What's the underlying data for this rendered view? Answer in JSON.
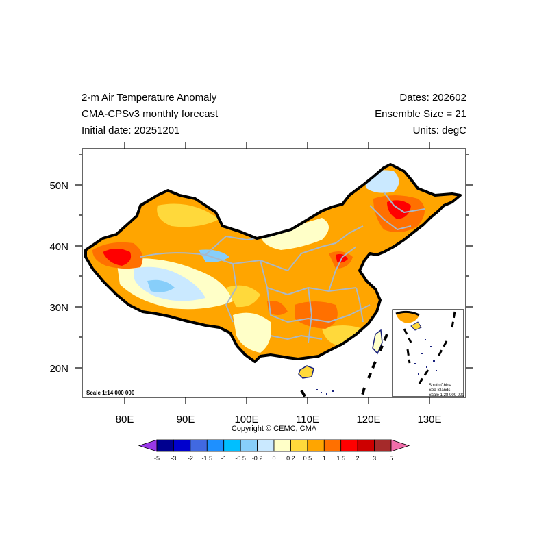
{
  "header": {
    "title": "2-m Air Temperature Anomaly",
    "model": "CMA-CPSv3 monthly forecast",
    "initial_date": "Initial date: 20251201",
    "dates": "Dates: 202602",
    "ensemble": "Ensemble Size = 21",
    "units": "Units: degC"
  },
  "axes": {
    "lon_labels": [
      "80E",
      "90E",
      "100E",
      "110E",
      "120E",
      "130E"
    ],
    "lat_labels": [
      "50N",
      "40N",
      "30N",
      "20N"
    ]
  },
  "map": {
    "scale_main": "Scale 1:14 000 000",
    "inset_title_1": "South China",
    "inset_title_2": "Sea Islands",
    "inset_scale": "Scale 1:28 000 000"
  },
  "copyright": "Copyright © CEMC, CMA",
  "colorbar": {
    "labels": [
      "-5",
      "-3",
      "-2",
      "-1.5",
      "-1",
      "-0.5",
      "-0.2",
      "0",
      "0.2",
      "0.5",
      "1",
      "1.5",
      "2",
      "3",
      "5"
    ],
    "colors": [
      "#9a38e8",
      "#00008f",
      "#0000cd",
      "#4169e1",
      "#1e90ff",
      "#00bfff",
      "#87cefa",
      "#cae9ff",
      "#ffffc8",
      "#ffd93b",
      "#ffa500",
      "#ff7000",
      "#ff0000",
      "#cd0000",
      "#a52a2a",
      "#f06eaa"
    ]
  },
  "palette": {
    "orange": "#ffa500",
    "dark_orange": "#ff7000",
    "gold": "#ffd93b",
    "pale_yellow": "#ffffc8",
    "pale_blue": "#cae9ff",
    "light_blue": "#87cefa",
    "red": "#ff0000",
    "dark_red": "#cd0000",
    "border": "#000000",
    "province_line": "#a9b8c8",
    "coast": "#1a237e"
  }
}
